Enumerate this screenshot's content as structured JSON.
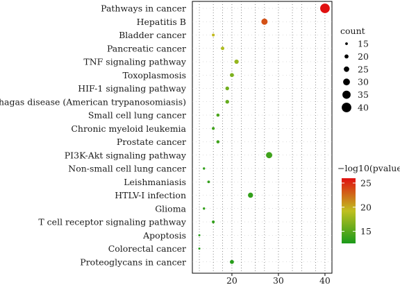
{
  "chart_data": {
    "type": "scatter",
    "title": "",
    "xlabel": "",
    "ylabel": "",
    "xlim": [
      11.5,
      41.5
    ],
    "xticks": [
      20,
      30,
      40
    ],
    "grid": "dotted vertical and horizontal",
    "categories": [
      "Pathways in cancer",
      "Hepatitis B",
      "Bladder cancer",
      "Pancreatic cancer",
      "TNF signaling pathway",
      "Toxoplasmosis",
      "HIF-1 signaling pathway",
      "Chagas disease (American trypanosomiasis)",
      "Small cell lung cancer",
      "Chronic myeloid leukemia",
      "Prostate cancer",
      "PI3K-Akt signaling pathway",
      "Non-small cell lung cancer",
      "Leishmaniasis",
      "HTLV-I infection",
      "Glioma",
      "T cell receptor signaling pathway",
      "Apoptosis",
      "Colorectal cancer",
      "Proteoglycans in cancer"
    ],
    "x": [
      40,
      27,
      16,
      18,
      21,
      20,
      19,
      19,
      17,
      16,
      17,
      28,
      14,
      15,
      24,
      14,
      16,
      13,
      13,
      20
    ],
    "size": [
      40,
      28,
      16,
      18,
      21,
      20,
      19,
      19,
      17,
      16,
      17,
      28,
      14,
      15,
      24,
      14,
      16,
      13,
      13,
      20
    ],
    "color_value": [
      26,
      23.5,
      19.5,
      18.5,
      17.5,
      16.5,
      16,
      15.5,
      14.5,
      14,
      14,
      14,
      13.5,
      13.5,
      13.5,
      13.5,
      13.5,
      13,
      13,
      13
    ],
    "size_legend": {
      "title": "count",
      "values": [
        15,
        20,
        25,
        30,
        35,
        40
      ],
      "labels": [
        "15",
        "20",
        "25",
        "30",
        "35",
        "40"
      ]
    },
    "color_legend": {
      "title": "−log10(pvalue)",
      "range": [
        12.5,
        26
      ],
      "ticks": [
        15,
        20,
        25
      ],
      "tick_labels": [
        "15",
        "20",
        "25"
      ],
      "colors": [
        "#1a9a1a",
        "#c0c020",
        "#e01010"
      ]
    },
    "legend_placement": "right"
  }
}
